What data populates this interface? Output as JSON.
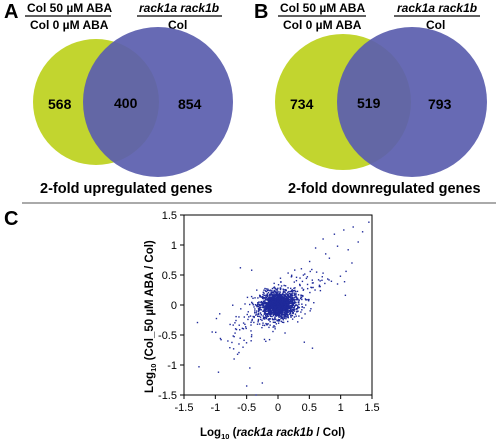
{
  "panels": {
    "A": "A",
    "B": "B",
    "C": "C"
  },
  "venn": [
    {
      "id": "A",
      "left_header_top": "Col 50 µM ABA",
      "left_header_bottom": "Col 0 µM ABA",
      "right_header_top": "rack1a rack1b",
      "right_header_bottom": "Col",
      "left_only": "568",
      "overlap": "400",
      "right_only": "854",
      "caption": "2-fold upregulated genes",
      "left_color": "#c2d52f",
      "right_color": "#5b5fae"
    },
    {
      "id": "B",
      "left_header_top": "Col 50 µM ABA",
      "left_header_bottom": "Col 0 µM ABA",
      "right_header_top": "rack1a rack1b",
      "right_header_bottom": "Col",
      "left_only": "734",
      "overlap": "519",
      "right_only": "793",
      "caption": "2-fold downregulated genes",
      "left_color": "#c2d52f",
      "right_color": "#5b5fae"
    }
  ],
  "chart_data": {
    "type": "scatter",
    "point_color": "#1f2a9a",
    "xlim": [
      -1.5,
      1.5
    ],
    "ylim": [
      -1.5,
      1.5
    ],
    "xticks": [
      "-1.5",
      "-1",
      "-0.5",
      "0",
      "0.5",
      "1",
      "1.5"
    ],
    "yticks": [
      "1.5",
      "1",
      "0.5",
      "0",
      "-0.5",
      "-1",
      "-1.5"
    ],
    "xlabel": {
      "prefix": "Log",
      "sub": "10",
      "open": " (",
      "italic": "rack1a rack1b",
      "rest": " / Col)"
    },
    "ylabel": {
      "prefix": "Log",
      "sub": "10",
      "rest": " (Col_50 µM ABA / Col)"
    },
    "grid": false,
    "cloud": {
      "description_center": [
        0.0,
        0.0
      ],
      "core_n": 1500,
      "core_sd": [
        0.14,
        0.11
      ],
      "trend_n": 320,
      "trend_sd": [
        0.38,
        0.3
      ],
      "trend_corr": 0.72
    },
    "outliers": [
      [
        1.45,
        1.38
      ],
      [
        1.2,
        1.3
      ],
      [
        1.05,
        1.25
      ],
      [
        0.9,
        1.18
      ],
      [
        0.72,
        1.1
      ],
      [
        1.28,
        1.05
      ],
      [
        1.12,
        0.92
      ],
      [
        0.95,
        0.98
      ],
      [
        0.6,
        0.95
      ],
      [
        1.35,
        1.22
      ],
      [
        0.82,
        0.78
      ],
      [
        1.18,
        0.7
      ],
      [
        -0.95,
        -1.12
      ],
      [
        -0.5,
        -1.35
      ],
      [
        -0.35,
        -1.5
      ],
      [
        -0.25,
        -1.3
      ],
      [
        -0.7,
        -0.9
      ],
      [
        -0.45,
        -1.05
      ],
      [
        -0.6,
        0.62
      ],
      [
        -0.42,
        0.58
      ],
      [
        0.55,
        -0.72
      ],
      [
        0.42,
        -0.62
      ],
      [
        -1.05,
        -0.45
      ],
      [
        0.95,
        0.35
      ],
      [
        -0.8,
        -0.6
      ]
    ]
  }
}
